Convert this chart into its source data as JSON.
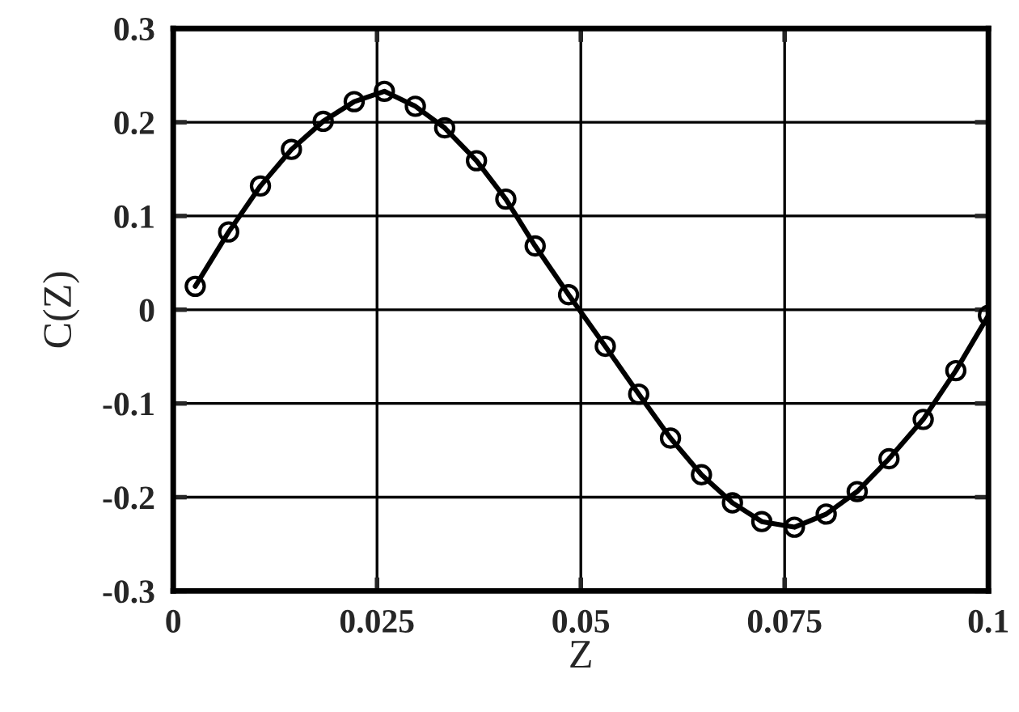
{
  "chart_data": {
    "type": "line",
    "xlabel": "Z",
    "ylabel": "C(Z)",
    "x": [
      0.0027,
      0.0068,
      0.0107,
      0.0145,
      0.0184,
      0.0222,
      0.0259,
      0.0297,
      0.0333,
      0.0372,
      0.0408,
      0.0444,
      0.0485,
      0.053,
      0.0571,
      0.061,
      0.0648,
      0.0686,
      0.0722,
      0.0762,
      0.0801,
      0.0839,
      0.0878,
      0.092,
      0.096,
      0.1
    ],
    "series": [
      {
        "color": "#000000",
        "values": [
          0.025,
          0.083,
          0.132,
          0.171,
          0.201,
          0.222,
          0.233,
          0.217,
          0.194,
          0.159,
          0.118,
          0.068,
          0.016,
          -0.039,
          -0.09,
          -0.137,
          -0.176,
          -0.206,
          -0.226,
          -0.232,
          -0.218,
          -0.194,
          -0.159,
          -0.117,
          -0.065,
          -0.006
        ]
      }
    ],
    "xlim": [
      0,
      0.1
    ],
    "xticks": [
      0,
      0.025,
      0.05,
      0.075,
      0.1
    ],
    "ylim": [
      -0.3,
      0.3
    ],
    "yticks": [
      -0.3,
      -0.2,
      -0.1,
      0,
      0.1,
      0.2,
      0.3
    ],
    "grid": true,
    "marker": "circle",
    "line_style": "solid"
  }
}
